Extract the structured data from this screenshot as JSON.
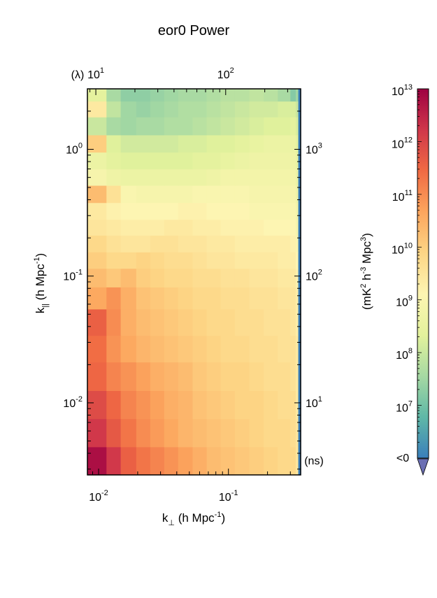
{
  "chart_data": {
    "type": "heatmap",
    "title": "eor0 Power",
    "x_axis": {
      "label_main": "k",
      "label_sub": "⊥",
      "label_rest": " (h Mpc",
      "label_sup": "-1",
      "label_end": ")",
      "scale": "log",
      "range": [
        0.0082,
        0.36
      ],
      "ticks": [
        {
          "base": "10",
          "exp": "-2",
          "value": 0.01
        },
        {
          "base": "10",
          "exp": "-1",
          "value": 0.1
        }
      ]
    },
    "y_axis": {
      "label_main": "k",
      "label_sub": "||",
      "label_rest": " (h Mpc",
      "label_sup": "-1",
      "label_end": ")",
      "scale": "log",
      "range": [
        0.0027,
        3.0
      ],
      "ticks": [
        {
          "base": "10",
          "exp": "-2",
          "value": 0.01
        },
        {
          "base": "10",
          "exp": "-1",
          "value": 0.1
        },
        {
          "base": "10",
          "exp": "0",
          "value": 1.0
        }
      ]
    },
    "top_axis": {
      "unit_label": "(λ)",
      "scale": "log",
      "ticks": [
        {
          "base": "10",
          "exp": "1",
          "value": 10
        },
        {
          "base": "10",
          "exp": "2",
          "value": 100
        }
      ]
    },
    "right_axis": {
      "unit_label": "(ns)",
      "scale": "log",
      "ticks": [
        {
          "base": "10",
          "exp": "1",
          "value": 10
        },
        {
          "base": "10",
          "exp": "2",
          "value": 100
        },
        {
          "base": "10",
          "exp": "3",
          "value": 1000
        }
      ]
    },
    "colorbar": {
      "label_prefix": "(mK",
      "label_sup1": "2",
      "label_mid": " h",
      "label_sup2": "-3",
      "label_mpc": " Mpc",
      "label_sup3": "3",
      "label_end": ")",
      "scale": "log",
      "range": [
        1000000.0,
        10000000000000.0
      ],
      "ticks": [
        {
          "base": "10",
          "exp": "13",
          "value": 10000000000000.0
        },
        {
          "base": "10",
          "exp": "12",
          "value": 1000000000000.0
        },
        {
          "base": "10",
          "exp": "11",
          "value": 100000000000.0
        },
        {
          "base": "10",
          "exp": "10",
          "value": 10000000000.0
        },
        {
          "base": "10",
          "exp": "9",
          "value": 1000000000.0
        },
        {
          "base": "10",
          "exp": "8",
          "value": 100000000.0
        },
        {
          "base": "10",
          "exp": "7",
          "value": 10000000.0
        }
      ],
      "below_label": "<0",
      "below_color": "#6b6fb3",
      "colors": [
        "#3a7fbb",
        "#5fb8a7",
        "#a6d9a3",
        "#e3f29c",
        "#fdf5b2",
        "#fdd585",
        "#fca55d",
        "#f06a43",
        "#d0374a",
        "#9e0142"
      ]
    },
    "pixel_grid": {
      "k_perp_edges": [
        0.0082,
        0.0115,
        0.0148,
        0.0195,
        0.025,
        0.032,
        0.041,
        0.053,
        0.068,
        0.087,
        0.112,
        0.145,
        0.187,
        0.24,
        0.3,
        0.33,
        0.345,
        0.36
      ],
      "k_par_edges": [
        0.0027,
        0.0045,
        0.0075,
        0.0125,
        0.021,
        0.034,
        0.055,
        0.082,
        0.115,
        0.155,
        0.21,
        0.28,
        0.38,
        0.52,
        0.7,
        0.95,
        1.3,
        1.8,
        2.4,
        3.0
      ],
      "log10_power": [
        [
          12.8,
          12.2,
          11.6,
          11.3,
          11.1,
          10.9,
          10.7,
          10.5,
          10.3,
          10.2,
          10.1,
          10.0,
          9.9,
          9.8,
          9.8,
          9.5,
          5.5
        ],
        [
          12.2,
          11.7,
          11.3,
          11.0,
          10.8,
          10.6,
          10.4,
          10.3,
          10.2,
          10.1,
          10.0,
          9.9,
          9.8,
          9.8,
          9.7,
          9.5,
          5.5
        ],
        [
          11.9,
          11.5,
          11.1,
          10.9,
          10.7,
          10.5,
          10.4,
          10.2,
          10.1,
          10.0,
          9.9,
          9.9,
          9.8,
          9.7,
          9.7,
          9.4,
          5.5
        ],
        [
          11.5,
          11.1,
          10.9,
          10.7,
          10.5,
          10.4,
          10.3,
          10.1,
          10.0,
          9.9,
          9.9,
          9.8,
          9.7,
          9.7,
          9.6,
          9.4,
          5.5
        ],
        [
          11.4,
          10.9,
          10.6,
          10.4,
          10.3,
          10.2,
          10.1,
          10.0,
          9.9,
          9.8,
          9.8,
          9.7,
          9.7,
          9.6,
          9.6,
          9.4,
          5.5
        ],
        [
          11.6,
          11.0,
          10.5,
          10.3,
          10.2,
          10.1,
          10.0,
          9.9,
          9.8,
          9.8,
          9.7,
          9.7,
          9.6,
          9.6,
          9.5,
          9.3,
          5.5
        ],
        [
          10.6,
          10.9,
          10.5,
          10.2,
          10.1,
          10.0,
          9.9,
          9.8,
          9.8,
          9.7,
          9.7,
          9.6,
          9.6,
          9.5,
          9.5,
          9.3,
          5.5
        ],
        [
          10.3,
          10.1,
          10.3,
          10.0,
          9.9,
          9.8,
          9.8,
          9.7,
          9.7,
          9.6,
          9.6,
          9.5,
          9.5,
          9.4,
          9.4,
          9.2,
          5.5
        ],
        [
          10.0,
          9.8,
          9.8,
          9.9,
          9.8,
          9.7,
          9.7,
          9.6,
          9.5,
          9.5,
          9.4,
          9.4,
          9.4,
          9.3,
          9.3,
          9.1,
          5.5
        ],
        [
          9.8,
          9.6,
          9.5,
          9.5,
          9.6,
          9.6,
          9.5,
          9.5,
          9.4,
          9.4,
          9.3,
          9.3,
          9.3,
          9.3,
          9.2,
          9.0,
          5.5
        ],
        [
          9.5,
          9.4,
          9.3,
          9.3,
          9.3,
          9.4,
          9.4,
          9.3,
          9.3,
          9.2,
          9.2,
          9.2,
          9.1,
          9.1,
          9.1,
          8.9,
          5.5
        ],
        [
          9.4,
          9.2,
          9.1,
          9.1,
          9.1,
          9.1,
          9.2,
          9.2,
          9.1,
          9.1,
          9.1,
          9.0,
          9.0,
          9.0,
          9.0,
          8.8,
          5.5
        ],
        [
          10.3,
          9.6,
          9.0,
          8.9,
          8.9,
          8.9,
          8.9,
          9.0,
          9.0,
          9.0,
          9.0,
          8.9,
          8.9,
          8.9,
          8.9,
          8.7,
          5.5
        ],
        [
          8.9,
          8.7,
          8.6,
          8.6,
          8.6,
          8.6,
          8.6,
          8.6,
          8.7,
          8.8,
          8.8,
          8.8,
          8.8,
          8.8,
          8.8,
          8.6,
          5.5
        ],
        [
          8.6,
          8.4,
          8.3,
          8.3,
          8.3,
          8.3,
          8.3,
          8.4,
          8.4,
          8.5,
          8.6,
          8.7,
          8.7,
          8.7,
          8.7,
          8.5,
          5.5
        ],
        [
          10.0,
          8.3,
          8.1,
          8.1,
          8.1,
          8.1,
          8.2,
          8.2,
          8.3,
          8.3,
          8.4,
          8.5,
          8.6,
          8.6,
          8.6,
          8.4,
          5.5
        ],
        [
          8.0,
          7.6,
          7.5,
          7.6,
          7.6,
          7.7,
          7.7,
          7.8,
          7.9,
          8.0,
          8.1,
          8.2,
          8.3,
          8.3,
          8.4,
          8.2,
          5.5
        ],
        [
          9.4,
          7.9,
          7.5,
          7.4,
          7.5,
          7.6,
          7.7,
          7.7,
          7.8,
          7.9,
          8.0,
          8.1,
          8.1,
          8.2,
          8.2,
          8.0,
          5.5
        ],
        [
          8.4,
          7.6,
          7.3,
          7.3,
          7.4,
          7.5,
          7.6,
          7.6,
          7.7,
          7.8,
          7.8,
          7.9,
          7.8,
          7.6,
          7.2,
          7.5,
          5.5
        ]
      ]
    }
  }
}
